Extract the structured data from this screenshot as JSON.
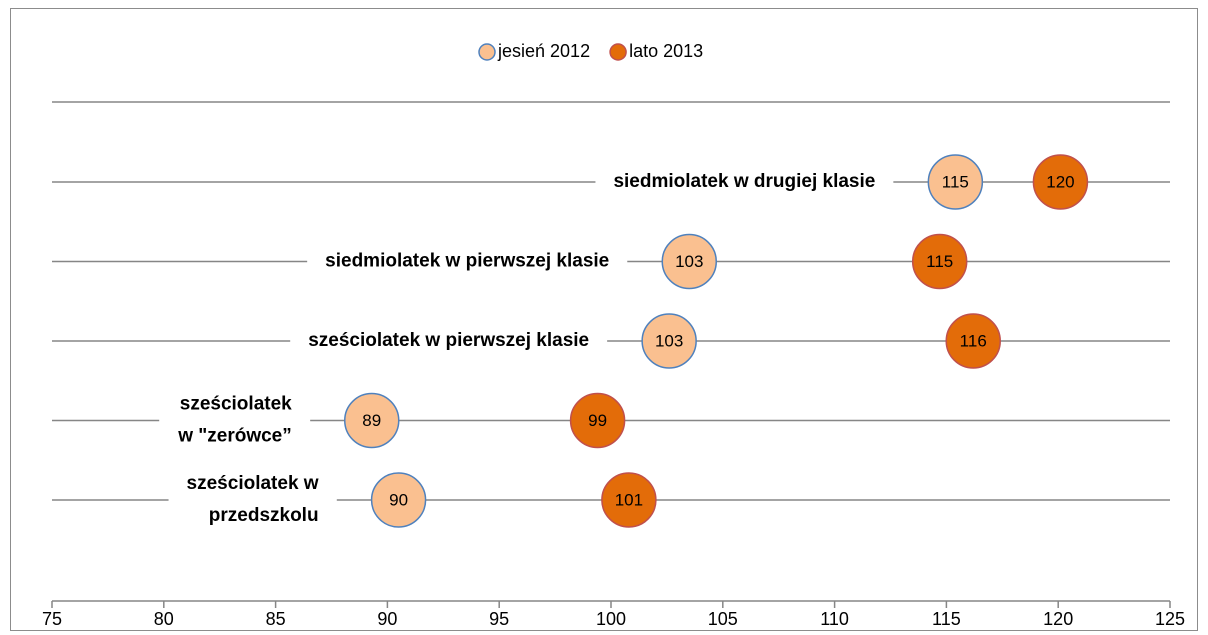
{
  "chart_data": {
    "type": "dot",
    "categories": [
      "siedmiolatek w drugiej klasie",
      "siedmiolatek w pierwszej klasie",
      "sześciolatek w pierwszej klasie",
      "sześciolatek\nw \"zerówce”",
      "sześciolatek w\nprzedszkolu"
    ],
    "series": [
      {
        "name": "jesień 2012",
        "color": "#fac090",
        "stroke": "#4f81bd",
        "values": [
          115.4,
          103.5,
          102.6,
          89.3,
          90.5
        ],
        "value_labels": [
          "115",
          "103",
          "103",
          "89",
          "90"
        ]
      },
      {
        "name": "lato 2013",
        "color": "#e36c09",
        "stroke": "#c0504d",
        "values": [
          120.1,
          114.7,
          116.2,
          99.4,
          100.8
        ],
        "value_labels": [
          "120",
          "115",
          "116",
          "99",
          "101"
        ]
      }
    ],
    "xlim": [
      75,
      125
    ],
    "xticks": [
      75,
      80,
      85,
      90,
      95,
      100,
      105,
      110,
      115,
      120,
      125
    ],
    "grid": true,
    "legend": "top"
  }
}
